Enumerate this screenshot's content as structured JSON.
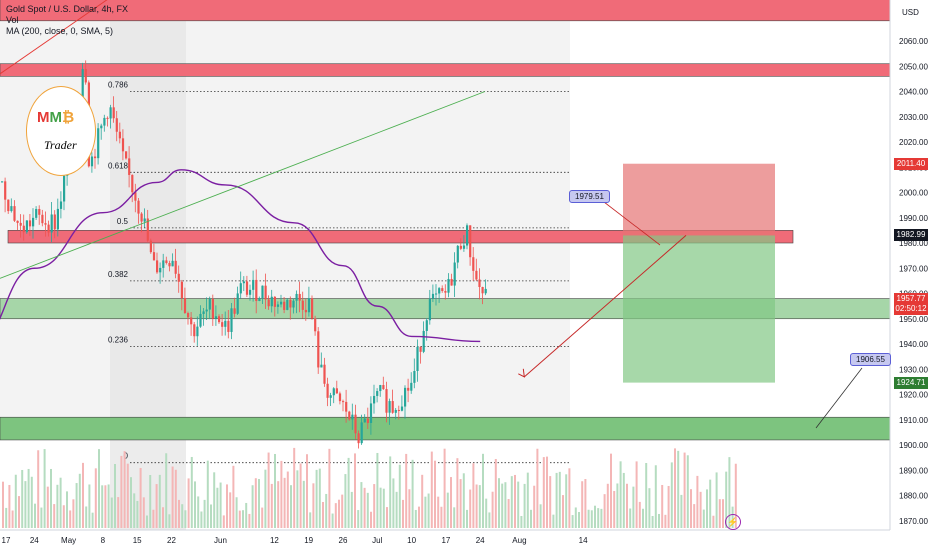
{
  "header": {
    "symbol_line": "Gold Spot / U.S. Dollar, 4h, FX",
    "vol_label": "Vol",
    "ma_label": "MA (200, close, 0, SMA, 5)",
    "currency": "USD"
  },
  "logo": {
    "line1": "MM₿",
    "line2": "Trader"
  },
  "price_axis": {
    "ticks": [
      1870,
      1880,
      1890,
      1900,
      1910,
      1920,
      1930,
      1940,
      1950,
      1960,
      1970,
      1980,
      1990,
      2000,
      2010,
      2020,
      2030,
      2040,
      2050,
      2060
    ],
    "tick_labels": [
      "1870.00",
      "1880.00",
      "1890.00",
      "1900.00",
      "1910.00",
      "1920.00",
      "1930.00",
      "1940.00",
      "1950.00",
      "1960.00",
      "1970.00",
      "1980.00",
      "1990.00",
      "2000.00",
      "2010.00",
      "2020.00",
      "2030.00",
      "2040.00",
      "2050.00",
      "2060.00"
    ]
  },
  "time_axis": {
    "labels": [
      "17",
      "24",
      "May",
      "8",
      "15",
      "22",
      "Jun",
      "12",
      "19",
      "26",
      "Jul",
      "10",
      "17",
      "24",
      "Aug",
      "14"
    ]
  },
  "price_tags": [
    {
      "label": "2011.40",
      "value": 2011.4,
      "color": "#e53935"
    },
    {
      "label": "1982.99",
      "value": 1982.99,
      "color": "#131722"
    },
    {
      "label": "1957.77",
      "value": 1957.77,
      "color": "#e53935"
    },
    {
      "label": "02:50:12",
      "value": 1953.9,
      "color": "#e53935"
    },
    {
      "label": "1924.71",
      "value": 1924.71,
      "color": "#2e7d32"
    }
  ],
  "fib_levels": [
    {
      "label": "0.786",
      "value": 2040
    },
    {
      "label": "0.618",
      "value": 2008
    },
    {
      "label": "0.5",
      "value": 1986
    },
    {
      "label": "0.382",
      "value": 1965
    },
    {
      "label": "0.236",
      "value": 1939
    },
    {
      "label": "0",
      "value": 1893
    }
  ],
  "callouts": [
    {
      "label": "1979.51",
      "value": 1979.51
    },
    {
      "label": "1906.55",
      "value": 1906.55
    }
  ],
  "zones": [
    {
      "name": "resistance-top",
      "from": 2068,
      "to": 2080,
      "color": "#f06b78"
    },
    {
      "name": "resistance-2050",
      "from": 2046,
      "to": 2051,
      "color": "#f06b78"
    },
    {
      "name": "resistance-1980",
      "from": 1980,
      "to": 1985,
      "color": "#f06b78"
    },
    {
      "name": "support-1955",
      "from": 1950,
      "to": 1958,
      "color": "#a6d6a8"
    },
    {
      "name": "support-1905",
      "from": 1902,
      "to": 1911,
      "color": "#7dc47f"
    }
  ],
  "position": {
    "entry": 1982.99,
    "stop": 2011.4,
    "target": 1924.71
  },
  "chart_data": {
    "type": "candlestick",
    "title": "Gold Spot / U.S. Dollar, 4h, FX",
    "ylabel": "USD",
    "ylim": [
      1866,
      2076
    ],
    "moving_average": "MA (200, close, 0, SMA, 5)",
    "close_path": [
      [
        "Apr 12",
        1998
      ],
      [
        "Apr 17",
        2004
      ],
      [
        "Apr 21",
        1985
      ],
      [
        "Apr 24",
        1990
      ],
      [
        "Apr 28",
        1988
      ],
      [
        "May 3",
        2030
      ],
      [
        "May 4",
        2062
      ],
      [
        "May 5",
        2010
      ],
      [
        "May 9",
        2035
      ],
      [
        "May 12",
        2012
      ],
      [
        "May 16",
        1990
      ],
      [
        "May 18",
        1970
      ],
      [
        "May 22",
        1975
      ],
      [
        "May 24",
        1960
      ],
      [
        "May 26",
        1945
      ],
      [
        "May 30",
        1955
      ],
      [
        "Jun 2",
        1946
      ],
      [
        "Jun 5",
        1962
      ],
      [
        "Jun 9",
        1961
      ],
      [
        "Jun 13",
        1955
      ],
      [
        "Jun 16",
        1958
      ],
      [
        "Jun 19",
        1956
      ],
      [
        "Jun 21",
        1930
      ],
      [
        "Jun 23",
        1920
      ],
      [
        "Jun 26",
        1915
      ],
      [
        "Jun 29",
        1903
      ],
      [
        "Jul 3",
        1920
      ],
      [
        "Jul 6",
        1915
      ],
      [
        "Jul 10",
        1925
      ],
      [
        "Jul 13",
        1955
      ],
      [
        "Jul 17",
        1960
      ],
      [
        "Jul 20",
        1982
      ],
      [
        "Jul 21",
        1984
      ],
      [
        "Jul 23",
        1965
      ],
      [
        "Jul 25",
        1957.77
      ]
    ],
    "ma200_path": [
      [
        "Apr 12",
        1940
      ],
      [
        "Apr 24",
        1970
      ],
      [
        "May 8",
        1992
      ],
      [
        "May 19",
        2004
      ],
      [
        "May 24",
        2009
      ],
      [
        "Jun 2",
        2003
      ],
      [
        "Jun 16",
        1988
      ],
      [
        "Jun 26",
        1971
      ],
      [
        "Jul 3",
        1955
      ],
      [
        "Jul 10",
        1943
      ],
      [
        "Jul 24",
        1941
      ]
    ],
    "projection": [
      [
        "Jul 24",
        1958
      ],
      [
        "Aug 2",
        1927
      ]
    ]
  }
}
